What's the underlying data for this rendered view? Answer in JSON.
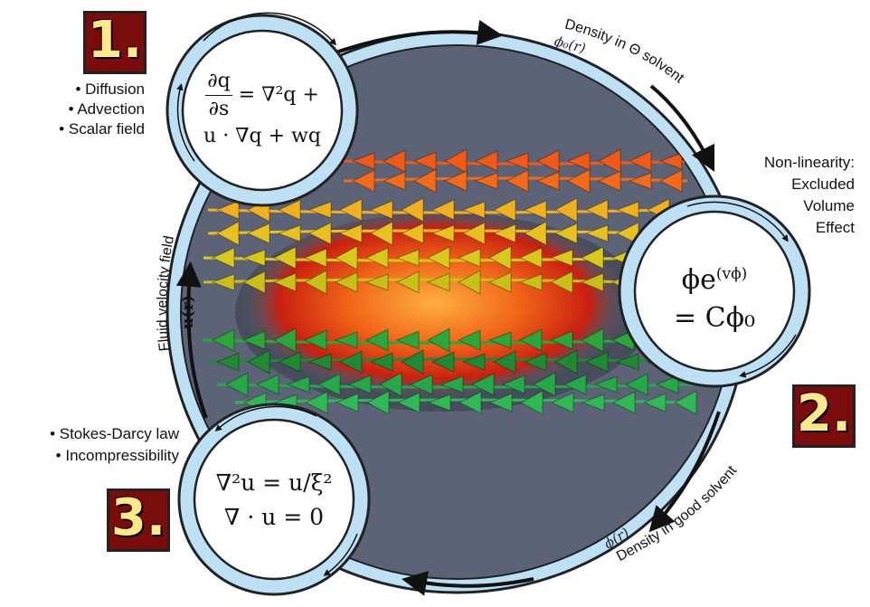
{
  "steps": [
    {
      "number": "1.",
      "bullets": [
        "• Diffusion",
        "• Advection",
        "• Scalar field"
      ]
    },
    {
      "number": "2.",
      "labels": [
        "Non-linearity:",
        "Excluded",
        "Volume",
        "Effect"
      ]
    },
    {
      "number": "3.",
      "bullets": [
        "• Stokes-Darcy law",
        "• Incompressibility"
      ]
    }
  ],
  "arcs": {
    "top_label": "Density in Θ solvent",
    "top_symbol": "ϕ₀(r)",
    "bottom_label": "Density in good solvent",
    "bottom_symbol": "ϕ(r)",
    "left_label": "Fluid velocity field",
    "left_symbol": "u(r)"
  },
  "equations": {
    "eq1_num": "∂q",
    "eq1_den": "∂s",
    "eq1_rest": "= ∇²q +",
    "eq1_line2": "u · ∇q + wq",
    "eq2_line1": "ϕe",
    "eq2_sup": "(vϕ)",
    "eq2_line2": "= Cϕ₀",
    "eq3_line1": "∇²u = u/ξ²",
    "eq3_line2": "∇ · u = 0"
  },
  "colors": {
    "ring": "#bde0f5",
    "ring_stroke": "#222222",
    "background_disk": "#5c6377",
    "badge_bg": "#7a0c0c",
    "badge_text": "#ffe88a"
  }
}
